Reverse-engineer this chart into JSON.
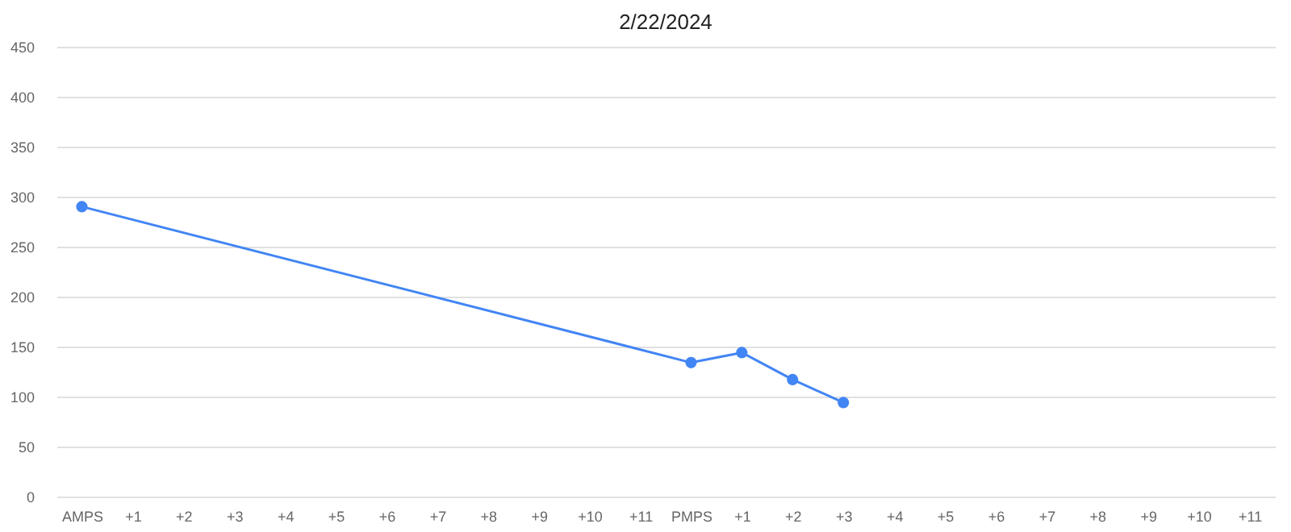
{
  "chart_data": {
    "type": "line",
    "title": "2/22/2024",
    "categories": [
      "AMPS",
      "+1",
      "+2",
      "+3",
      "+4",
      "+5",
      "+6",
      "+7",
      "+8",
      "+9",
      "+10",
      "+11",
      "PMPS",
      "+1",
      "+2",
      "+3",
      "+4",
      "+5",
      "+6",
      "+7",
      "+8",
      "+9",
      "+10",
      "+11"
    ],
    "series": [
      {
        "color": "#4285f4",
        "values": [
          290,
          null,
          null,
          null,
          null,
          null,
          null,
          null,
          null,
          null,
          null,
          null,
          134,
          144,
          117,
          94,
          null,
          null,
          null,
          null,
          null,
          null,
          null,
          null
        ]
      }
    ],
    "ylim": [
      0,
      450
    ],
    "yticks": [
      0,
      50,
      100,
      150,
      200,
      250,
      300,
      350,
      400,
      450
    ],
    "grid": "y",
    "marker": "circle",
    "line_style": "solid"
  }
}
